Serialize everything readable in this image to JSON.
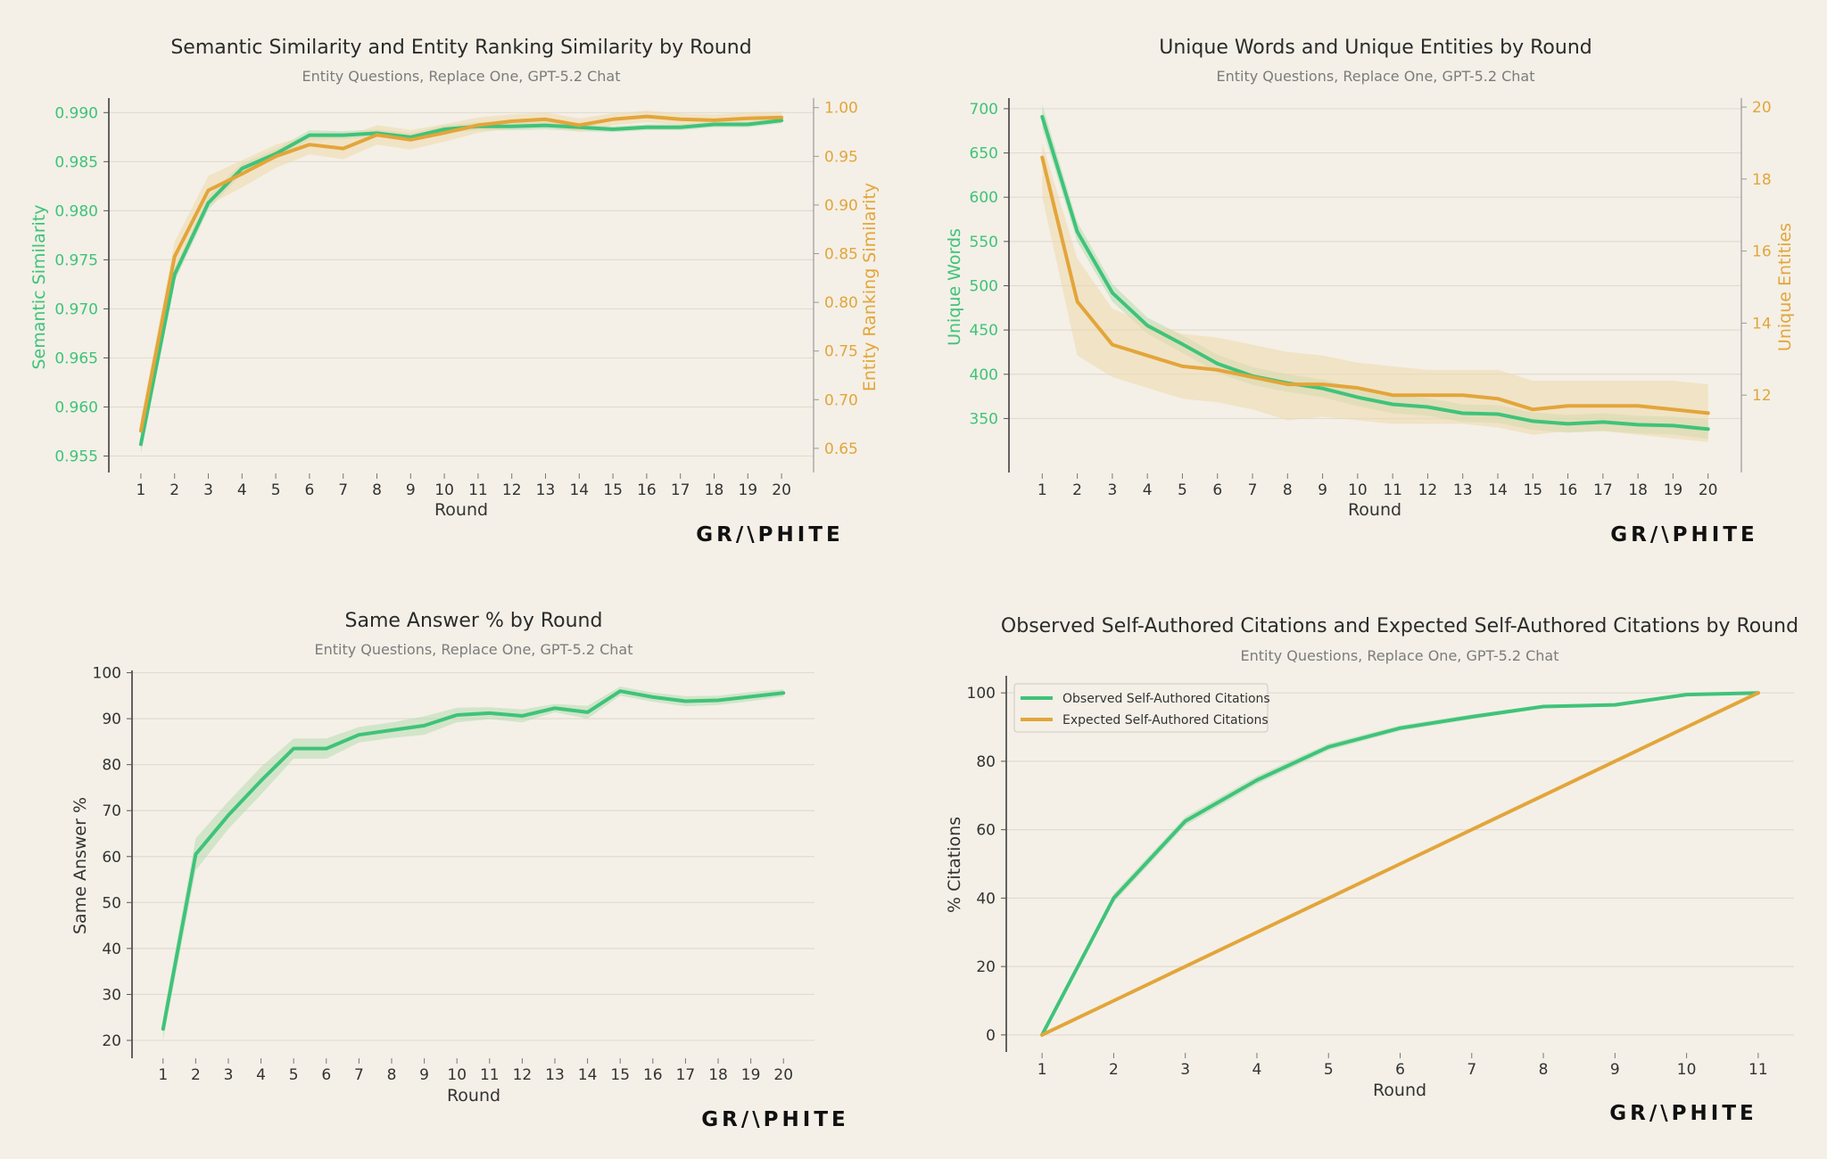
{
  "colors": {
    "green": "#3fc37a",
    "orange": "#e3a53a",
    "green_band": "#b7dcb0",
    "orange_band": "#eed8ab",
    "grid": "#e0dcd2",
    "axis": "#222222",
    "text": "#333333",
    "background": "#f4f0e7"
  },
  "brand": {
    "logo": "GR/\\PHITE"
  },
  "chart_data": [
    {
      "id": "c1",
      "type": "line",
      "title": "Semantic Similarity and Entity Ranking Similarity by Round",
      "subtitle": "Entity Questions, Replace One, GPT-5.2 Chat",
      "xlabel": "Round",
      "ylabel": "Semantic Similarity",
      "ylabel_right": "Entity Ranking Similarity",
      "x": [
        1,
        2,
        3,
        4,
        5,
        6,
        7,
        8,
        9,
        10,
        11,
        12,
        13,
        14,
        15,
        16,
        17,
        18,
        19,
        20
      ],
      "xlim": [
        0.05,
        20.95
      ],
      "ylim": [
        0.9535,
        0.9913
      ],
      "ylim_right": [
        0.627,
        1.008
      ],
      "yticks": [
        0.955,
        0.96,
        0.965,
        0.97,
        0.975,
        0.98,
        0.985,
        0.99
      ],
      "yticks_right": [
        0.65,
        0.7,
        0.75,
        0.8,
        0.85,
        0.9,
        0.95,
        1.0
      ],
      "ytick_labels": [
        "0.955",
        "0.960",
        "0.965",
        "0.970",
        "0.975",
        "0.980",
        "0.985",
        "0.990"
      ],
      "ytick_labels_right": [
        "0.65",
        "0.70",
        "0.75",
        "0.80",
        "0.85",
        "0.90",
        "0.95",
        "1.00"
      ],
      "grid": true,
      "series": [
        {
          "name": "Semantic Similarity",
          "axis": "left",
          "color": "#3fc37a",
          "values": [
            0.9562,
            0.9735,
            0.9808,
            0.9843,
            0.9858,
            0.9877,
            0.9877,
            0.9879,
            0.9875,
            0.9883,
            0.9886,
            0.9886,
            0.9887,
            0.9885,
            0.9883,
            0.9885,
            0.9885,
            0.9888,
            0.9888,
            0.9892
          ],
          "lower": [
            0.9552,
            0.9728,
            0.9801,
            0.9838,
            0.9853,
            0.9872,
            0.9873,
            0.9875,
            0.9871,
            0.9879,
            0.9882,
            0.9882,
            0.9883,
            0.9881,
            0.988,
            0.9882,
            0.9882,
            0.9885,
            0.9885,
            0.9889
          ],
          "upper": [
            0.9572,
            0.9742,
            0.9815,
            0.9848,
            0.9863,
            0.9882,
            0.9881,
            0.9883,
            0.9879,
            0.9887,
            0.989,
            0.989,
            0.9891,
            0.9889,
            0.9886,
            0.9888,
            0.9888,
            0.9891,
            0.9891,
            0.9895
          ]
        },
        {
          "name": "Entity Ranking Similarity",
          "axis": "right",
          "color": "#e3a53a",
          "values": [
            0.668,
            0.847,
            0.915,
            0.932,
            0.95,
            0.962,
            0.958,
            0.972,
            0.967,
            0.974,
            0.982,
            0.986,
            0.988,
            0.982,
            0.988,
            0.991,
            0.988,
            0.987,
            0.989,
            0.99
          ],
          "lower": [
            0.655,
            0.832,
            0.9,
            0.918,
            0.938,
            0.952,
            0.947,
            0.962,
            0.957,
            0.965,
            0.974,
            0.979,
            0.981,
            0.975,
            0.982,
            0.985,
            0.982,
            0.981,
            0.983,
            0.984
          ],
          "upper": [
            0.681,
            0.862,
            0.93,
            0.946,
            0.962,
            0.972,
            0.969,
            0.982,
            0.977,
            0.983,
            0.99,
            0.993,
            0.995,
            0.989,
            0.994,
            0.997,
            0.994,
            0.993,
            0.995,
            0.996
          ]
        }
      ]
    },
    {
      "id": "c2",
      "type": "line",
      "title": "Unique Words and Unique Entities by Round",
      "subtitle": "Entity Questions, Replace One, GPT-5.2 Chat",
      "xlabel": "Round",
      "ylabel": "Unique Words",
      "ylabel_right": "Unique Entities",
      "x": [
        1,
        2,
        3,
        4,
        5,
        6,
        7,
        8,
        9,
        10,
        11,
        12,
        13,
        14,
        15,
        16,
        17,
        18,
        19,
        20
      ],
      "xlim": [
        0.05,
        20.95
      ],
      "ylim": [
        291,
        710
      ],
      "ylim_right": [
        9.9,
        20.2
      ],
      "yticks": [
        350,
        400,
        450,
        500,
        550,
        600,
        650,
        700
      ],
      "yticks_right": [
        12,
        14,
        16,
        18,
        20
      ],
      "ytick_labels": [
        "350",
        "400",
        "450",
        "500",
        "550",
        "600",
        "650",
        "700"
      ],
      "ytick_labels_right": [
        "12",
        "14",
        "16",
        "18",
        "20"
      ],
      "grid": true,
      "series": [
        {
          "name": "Unique Words",
          "axis": "left",
          "color": "#3fc37a",
          "values": [
            691,
            561,
            492,
            455,
            434,
            412,
            398,
            390,
            384,
            374,
            366,
            363,
            356,
            355,
            347,
            344,
            346,
            343,
            342,
            338
          ],
          "lower": [
            678,
            550,
            482,
            446,
            424,
            402,
            388,
            380,
            374,
            364,
            356,
            353,
            346,
            345,
            337,
            334,
            336,
            333,
            332,
            327
          ],
          "upper": [
            705,
            572,
            502,
            464,
            444,
            422,
            408,
            400,
            394,
            384,
            376,
            373,
            366,
            365,
            357,
            354,
            356,
            353,
            352,
            349
          ]
        },
        {
          "name": "Unique Entities",
          "axis": "right",
          "color": "#e3a53a",
          "values": [
            18.6,
            14.6,
            13.4,
            13.1,
            12.8,
            12.7,
            12.5,
            12.3,
            12.3,
            12.2,
            12.0,
            12.0,
            12.0,
            11.9,
            11.6,
            11.7,
            11.7,
            11.7,
            11.6,
            11.5
          ],
          "lower": [
            17.5,
            13.1,
            12.5,
            12.2,
            11.9,
            11.8,
            11.6,
            11.3,
            11.4,
            11.3,
            11.2,
            11.2,
            11.2,
            11.1,
            10.9,
            11.0,
            11.0,
            10.9,
            10.8,
            10.7
          ],
          "upper": [
            19.0,
            15.8,
            14.4,
            14.0,
            13.7,
            13.6,
            13.4,
            13.2,
            13.1,
            12.9,
            12.8,
            12.7,
            12.7,
            12.7,
            12.4,
            12.4,
            12.4,
            12.4,
            12.4,
            12.3
          ]
        }
      ]
    },
    {
      "id": "c3",
      "type": "line",
      "title": "Same Answer % by Round",
      "subtitle": "Entity Questions, Replace One, GPT-5.2 Chat",
      "xlabel": "Round",
      "ylabel": "Same Answer %",
      "x": [
        1,
        2,
        3,
        4,
        5,
        6,
        7,
        8,
        9,
        10,
        11,
        12,
        13,
        14,
        15,
        16,
        17,
        18,
        19,
        20
      ],
      "xlim": [
        0.05,
        20.95
      ],
      "ylim": [
        16.5,
        100.5
      ],
      "yticks": [
        20,
        30,
        40,
        50,
        60,
        70,
        80,
        90,
        100
      ],
      "ytick_labels": [
        "20",
        "30",
        "40",
        "50",
        "60",
        "70",
        "80",
        "90",
        "100"
      ],
      "grid": true,
      "series": [
        {
          "name": "Same Answer %",
          "axis": "left",
          "color": "#3fc37a",
          "values": [
            22.5,
            60.5,
            69,
            76.5,
            83.5,
            83.5,
            86.5,
            87.5,
            88.5,
            90.8,
            91.2,
            90.6,
            92.3,
            91.4,
            96,
            94.7,
            93.8,
            94,
            94.8,
            95.6
          ],
          "lower": [
            20,
            57,
            66,
            73.5,
            81.3,
            81.3,
            84.8,
            85.8,
            86.5,
            89.2,
            89.9,
            89.2,
            91.4,
            90,
            95,
            93.7,
            92.7,
            93,
            93.8,
            94.8
          ],
          "upper": [
            25,
            64,
            72,
            79.5,
            85.7,
            85.7,
            88.2,
            89.2,
            90.5,
            92.4,
            92.5,
            92,
            93.2,
            92.8,
            97,
            95.7,
            94.9,
            95,
            95.8,
            96.4
          ]
        }
      ]
    },
    {
      "id": "c4",
      "type": "line",
      "title": "Observed Self-Authored Citations and Expected Self-Authored Citations by Round",
      "subtitle": "Entity Questions, Replace One, GPT-5.2 Chat",
      "xlabel": "Round",
      "ylabel": "% Citations",
      "x": [
        1,
        2,
        3,
        4,
        5,
        6,
        7,
        8,
        9,
        10,
        11
      ],
      "xlim": [
        0.5,
        11.5
      ],
      "ylim": [
        -5,
        105
      ],
      "yticks": [
        0,
        20,
        40,
        60,
        80,
        100
      ],
      "ytick_labels": [
        "0",
        "20",
        "40",
        "60",
        "80",
        "100"
      ],
      "grid": true,
      "legend": "top-left",
      "series": [
        {
          "name": "Observed Self-Authored Citations",
          "axis": "left",
          "color": "#3fc37a",
          "values": [
            0,
            40,
            62.5,
            74.5,
            84.2,
            89.7,
            93,
            96,
            96.5,
            99.5,
            100
          ],
          "lower": [
            0,
            38.7,
            61.2,
            73.3,
            83.2,
            88.9,
            92.3,
            95.5,
            96,
            99.2,
            100
          ],
          "upper": [
            0,
            41.3,
            63.8,
            75.7,
            85.2,
            90.5,
            93.7,
            96.5,
            97,
            99.8,
            100
          ]
        },
        {
          "name": "Expected Self-Authored Citations",
          "axis": "left",
          "color": "#e3a53a",
          "values": [
            0,
            10,
            20,
            30,
            40,
            50,
            60,
            70,
            80,
            90,
            100
          ]
        }
      ]
    }
  ]
}
